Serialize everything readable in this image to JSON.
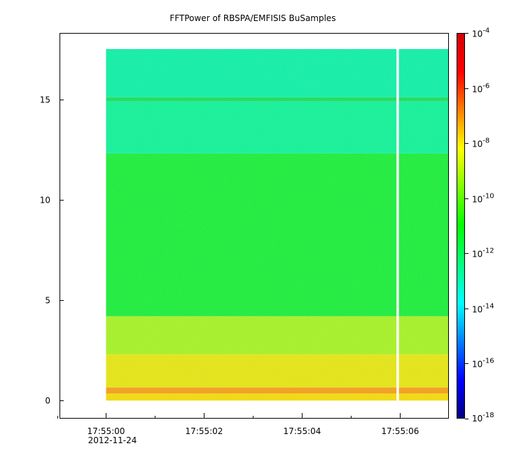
{
  "chart_data": {
    "type": "heatmap",
    "title": "FFTPower of RBSPA/EMFISIS  BuSamples",
    "xlabel": "",
    "ylabel": "",
    "x_ticks": [
      {
        "value": 0,
        "label": "17:55:00",
        "sublabel": "2012-11-24"
      },
      {
        "value": 2,
        "label": "17:55:02",
        "sublabel": ""
      },
      {
        "value": 4,
        "label": "17:55:04",
        "sublabel": ""
      },
      {
        "value": 6,
        "label": "17:55:06",
        "sublabel": ""
      }
    ],
    "x_minor_ticks": [
      -1,
      1,
      3,
      5
    ],
    "xlim": [
      -0.95,
      7.0
    ],
    "y_ticks": [
      {
        "value": 0,
        "label": "0"
      },
      {
        "value": 5,
        "label": "5"
      },
      {
        "value": 10,
        "label": "10"
      },
      {
        "value": 15,
        "label": "15"
      }
    ],
    "ylim": [
      -0.9,
      18.3
    ],
    "data_extent": {
      "x": [
        0,
        7.0
      ],
      "y": [
        0,
        17.5
      ]
    },
    "data_gap": {
      "x": [
        5.93,
        5.98
      ]
    },
    "colorbar": {
      "scale": "log",
      "range": [
        1e-18,
        0.0001
      ],
      "ticks": [
        {
          "base": "10",
          "exp": "-4",
          "value": 0.0001
        },
        {
          "base": "10",
          "exp": "-6",
          "value": 1e-06
        },
        {
          "base": "10",
          "exp": "-8",
          "value": 1e-08
        },
        {
          "base": "10",
          "exp": "-10",
          "value": 1e-10
        },
        {
          "base": "10",
          "exp": "-12",
          "value": 1e-12
        },
        {
          "base": "10",
          "exp": "-14",
          "value": 1e-14
        },
        {
          "base": "10",
          "exp": "-16",
          "value": 1e-16
        },
        {
          "base": "10",
          "exp": "-18",
          "value": 1e-18
        }
      ],
      "colormap": [
        "#00007f",
        "#0000ff",
        "#007fff",
        "#00ffff",
        "#00ff7f",
        "#00ff00",
        "#7fff00",
        "#ffff00",
        "#ff7f00",
        "#ff0000",
        "#d00000"
      ]
    },
    "spectrum_bands": [
      {
        "y": [
          0.0,
          0.35
        ],
        "log10_power": -8.4,
        "color": "#f2dc10"
      },
      {
        "y": [
          0.35,
          0.65
        ],
        "log10_power": -7.7,
        "color": "#f5a020"
      },
      {
        "y": [
          0.65,
          2.3
        ],
        "log10_power": -8.8,
        "color": "#e6e619"
      },
      {
        "y": [
          2.3,
          4.2
        ],
        "log10_power": -9.6,
        "color": "#a8f22a"
      },
      {
        "y": [
          4.2,
          12.3
        ],
        "log10_power": -10.5,
        "color": "#21ee3f"
      },
      {
        "y": [
          12.3,
          14.9
        ],
        "log10_power": -12.3,
        "color": "#17f29a"
      },
      {
        "y": [
          14.9,
          15.1
        ],
        "log10_power": -11.2,
        "color": "#1ee060"
      },
      {
        "y": [
          15.1,
          17.5
        ],
        "log10_power": -12.6,
        "color": "#15f0a8"
      }
    ]
  }
}
